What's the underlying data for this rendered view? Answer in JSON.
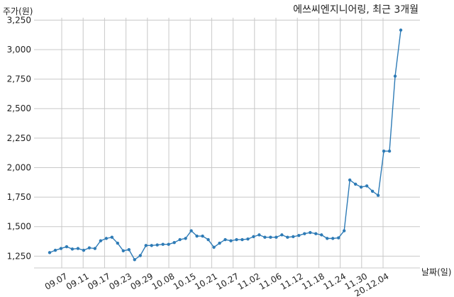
{
  "chart_data": {
    "type": "line",
    "title": "에쓰씨엔지니어링, 최근 3개월",
    "xlabel": "날짜(일)",
    "ylabel": "주가(원)",
    "ylim": [
      1150,
      3270
    ],
    "yticks": [
      1250,
      1500,
      1750,
      2000,
      2250,
      2500,
      2750,
      3000,
      3250
    ],
    "ytick_labels": [
      "1,250",
      "1,500",
      "1,750",
      "2,000",
      "2,250",
      "2,500",
      "2,750",
      "3,000",
      "3,250"
    ],
    "xticks": [
      "09.07",
      "09.11",
      "09.17",
      "09.23",
      "09.29",
      "10.08",
      "10.15",
      "10.21",
      "10.27",
      "11.02",
      "11.06",
      "11.12",
      "11.18",
      "11.24",
      "11.30",
      "20.12.04"
    ],
    "grid": true,
    "color": "#2e7bb6",
    "series": [
      {
        "values": [
          1280,
          1300,
          1315,
          1330,
          1310,
          1315,
          1300,
          1320,
          1315,
          1380,
          1400,
          1410,
          1360,
          1295,
          1305,
          1220,
          1255,
          1340,
          1340,
          1345,
          1350,
          1350,
          1365,
          1390,
          1400,
          1465,
          1420,
          1420,
          1390,
          1325,
          1360,
          1390,
          1380,
          1390,
          1390,
          1395,
          1415,
          1430,
          1410,
          1410,
          1410,
          1430,
          1410,
          1415,
          1425,
          1440,
          1450,
          1440,
          1430,
          1400,
          1400,
          1405,
          1465,
          1895,
          1860,
          1835,
          1845,
          1800,
          1765,
          2140,
          2140,
          2775,
          3165
        ]
      }
    ]
  }
}
